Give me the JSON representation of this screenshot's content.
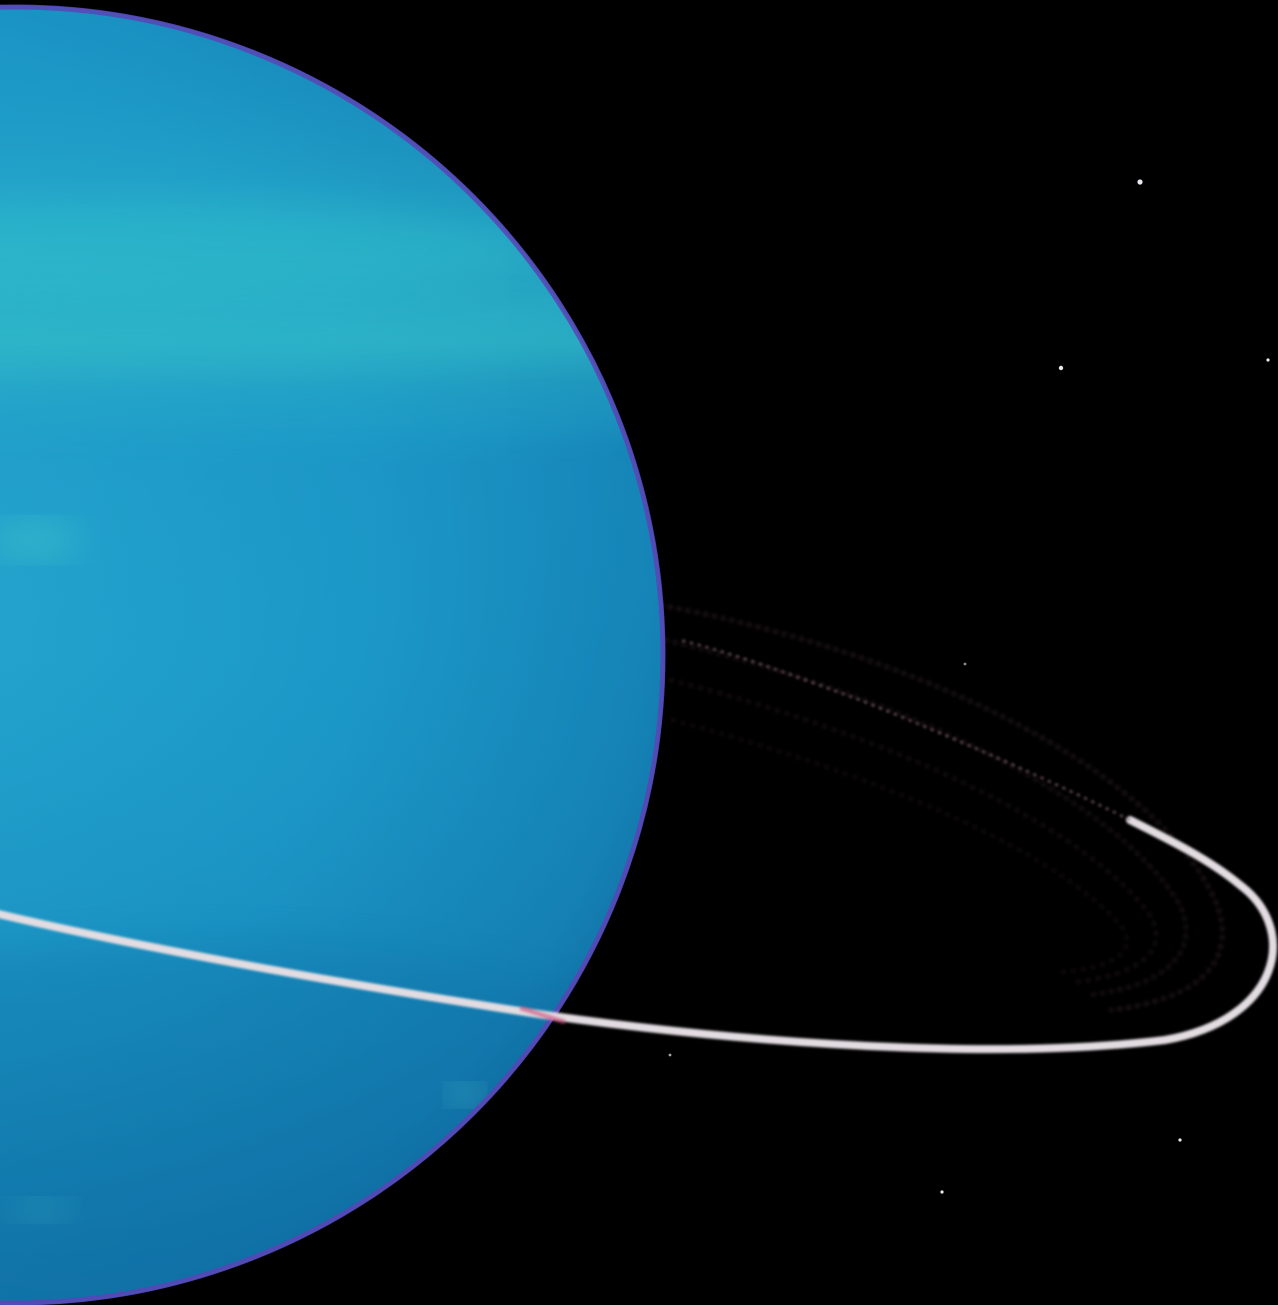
{
  "scene": {
    "subject": "planet-with-rings",
    "colors": {
      "space": "#000000",
      "planet_light": "#2fb6cf",
      "planet_mid": "#1a9bc6",
      "planet_dark": "#0f6f9e",
      "planet_band": "#39c4c7",
      "limb": "#5a3fb0",
      "ring_bright": "#e6e0e4",
      "ring_faint": "#8a6b74",
      "star": "#e8e8f0"
    }
  }
}
